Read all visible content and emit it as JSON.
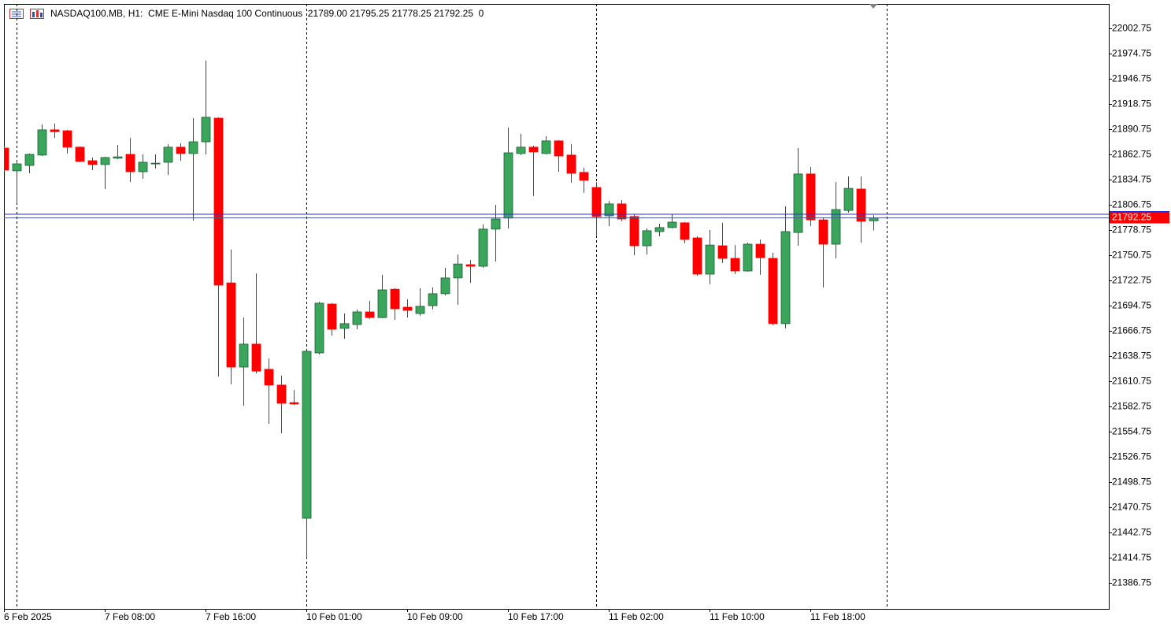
{
  "chart_data": {
    "type": "candlestick",
    "title": "NASDAQ100.MB, H1:  CME E-Mini Nasdaq 100 Continuous  21789.00 21795.25 21778.25 21792.25  0",
    "categories": [
      "6 Feb 2025",
      null,
      null,
      null,
      null,
      null,
      null,
      null,
      "7 Feb 08:00",
      null,
      null,
      null,
      null,
      null,
      null,
      null,
      "7 Feb 16:00",
      null,
      null,
      null,
      null,
      null,
      null,
      null,
      "10 Feb 01:00",
      null,
      null,
      null,
      null,
      null,
      null,
      null,
      "10 Feb 09:00",
      null,
      null,
      null,
      null,
      null,
      null,
      null,
      "10 Feb 17:00",
      null,
      null,
      null,
      null,
      null,
      null,
      null,
      "11 Feb 02:00",
      null,
      null,
      null,
      null,
      null,
      null,
      null,
      "11 Feb 10:00",
      null,
      null,
      null,
      null,
      null,
      null,
      null,
      "11 Feb 18:00",
      null,
      null,
      null,
      null,
      null
    ],
    "open": [
      21869.75,
      21844.5,
      21850.5,
      21862,
      21890,
      21889,
      21870.75,
      21855.75,
      21851.5,
      21858.5,
      21862.75,
      21843.5,
      21852.25,
      21854,
      21870.75,
      21863.75,
      21876.75,
      21903,
      21720,
      21626.5,
      21652,
      21624,
      21606.5,
      21587,
      21458.5,
      21642.25,
      21696.5,
      21669.5,
      21673.75,
      21687.75,
      21681.5,
      21713,
      21693,
      21686,
      21694.75,
      21708,
      21725.5,
      21740.25,
      21738.5,
      21779.75,
      21792,
      21863.75,
      21870.75,
      21863.75,
      21877.75,
      21862,
      21842.75,
      21826,
      21794.5,
      21807.75,
      21793.75,
      21761.25,
      21777,
      21781.5,
      21786.75,
      21770,
      21729.75,
      21761.25,
      21747.25,
      21733.25,
      21763,
      21747.25,
      21674.75,
      21776,
      21841,
      21790,
      21763,
      21800.5,
      21824.25,
      21789.0
    ],
    "high": [
      21871.5,
      21855,
      21863.75,
      21896,
      21897,
      21890,
      21871.5,
      21859.25,
      21860,
      21873.25,
      21881,
      21862.75,
      21862.75,
      21874,
      21875,
      21903,
      21967,
      21904,
      21757,
      21681.5,
      21730.5,
      21636,
      21617,
      21601,
      21645,
      21699,
      21697.5,
      21686,
      21690.5,
      21700,
      21729,
      21714,
      21701.75,
      21714,
      21715,
      21736.75,
      21751.5,
      21745.5,
      21785,
      21806.75,
      21892.5,
      21885.5,
      21872.5,
      21883,
      21878.5,
      21874,
      21848,
      21832,
      21811,
      21812,
      21796.25,
      21780.5,
      21785.75,
      21796.25,
      21787.5,
      21771.75,
      21778.75,
      21786.75,
      21762,
      21764.75,
      21768.25,
      21753.5,
      21805,
      21869.75,
      21848.75,
      21792.75,
      21832,
      21838.25,
      21838.25,
      21795.25
    ],
    "low": [
      21843.5,
      21808.5,
      21841.75,
      21861,
      21881,
      21863.75,
      21854,
      21845.25,
      21824.25,
      21857.5,
      21832,
      21835.75,
      21847,
      21840,
      21855.75,
      21789.25,
      21862.75,
      21616,
      21607.25,
      21583.5,
      21619.5,
      21563.5,
      21553,
      21584.5,
      21414,
      21640.5,
      21661.5,
      21658,
      21668.5,
      21680,
      21680.75,
      21679,
      21681.5,
      21683.5,
      21690.5,
      21706,
      21695.75,
      21720,
      21736.75,
      21743.75,
      21780.5,
      21862,
      21816.5,
      21862.75,
      21843.5,
      21831.25,
      21820,
      21771.75,
      21783,
      21788.5,
      21750.75,
      21751.5,
      21771.75,
      21780.5,
      21764,
      21728,
      21718.5,
      21742,
      21729.75,
      21732.5,
      21729,
      21673,
      21669.5,
      21761.25,
      21783,
      21715,
      21747.25,
      21798,
      21764.75,
      21778.25
    ],
    "close": [
      21845.25,
      21852.25,
      21862.75,
      21890,
      21888,
      21870.75,
      21855,
      21851.5,
      21859.25,
      21860,
      21843.5,
      21854,
      21853,
      21870.75,
      21863.75,
      21876.75,
      21904,
      21717.5,
      21626.5,
      21652,
      21622,
      21606.5,
      21586.25,
      21585.5,
      21644,
      21697.5,
      21668.5,
      21674.75,
      21687.75,
      21681.5,
      21712.25,
      21691.25,
      21689.5,
      21694,
      21708,
      21725.5,
      21741,
      21738.5,
      21779.75,
      21791,
      21864.5,
      21870.75,
      21865.5,
      21877.75,
      21861,
      21841.75,
      21834,
      21793.75,
      21807.75,
      21791,
      21761.25,
      21778,
      21781.5,
      21787.5,
      21768.25,
      21729.75,
      21762,
      21747.25,
      21733.25,
      21763,
      21748,
      21674.75,
      21777,
      21841,
      21790,
      21763,
      21801.5,
      21825,
      21788.5,
      21792.25
    ],
    "up_color": "#3ca55c",
    "up_border": "#1c5e33",
    "down_color": "#ff0000",
    "ylim": [
      21357.875,
      22029.875
    ],
    "yticks": [
      22002.75,
      21974.75,
      21946.75,
      21918.75,
      21890.75,
      21862.75,
      21834.75,
      21806.75,
      21778.75,
      21750.75,
      21722.75,
      21694.75,
      21666.75,
      21638.75,
      21610.75,
      21582.75,
      21554.75,
      21526.75,
      21498.75,
      21470.75,
      21442.75,
      21414.75,
      21386.75
    ],
    "bid": 21792.25,
    "ask": 21796.25
  }
}
